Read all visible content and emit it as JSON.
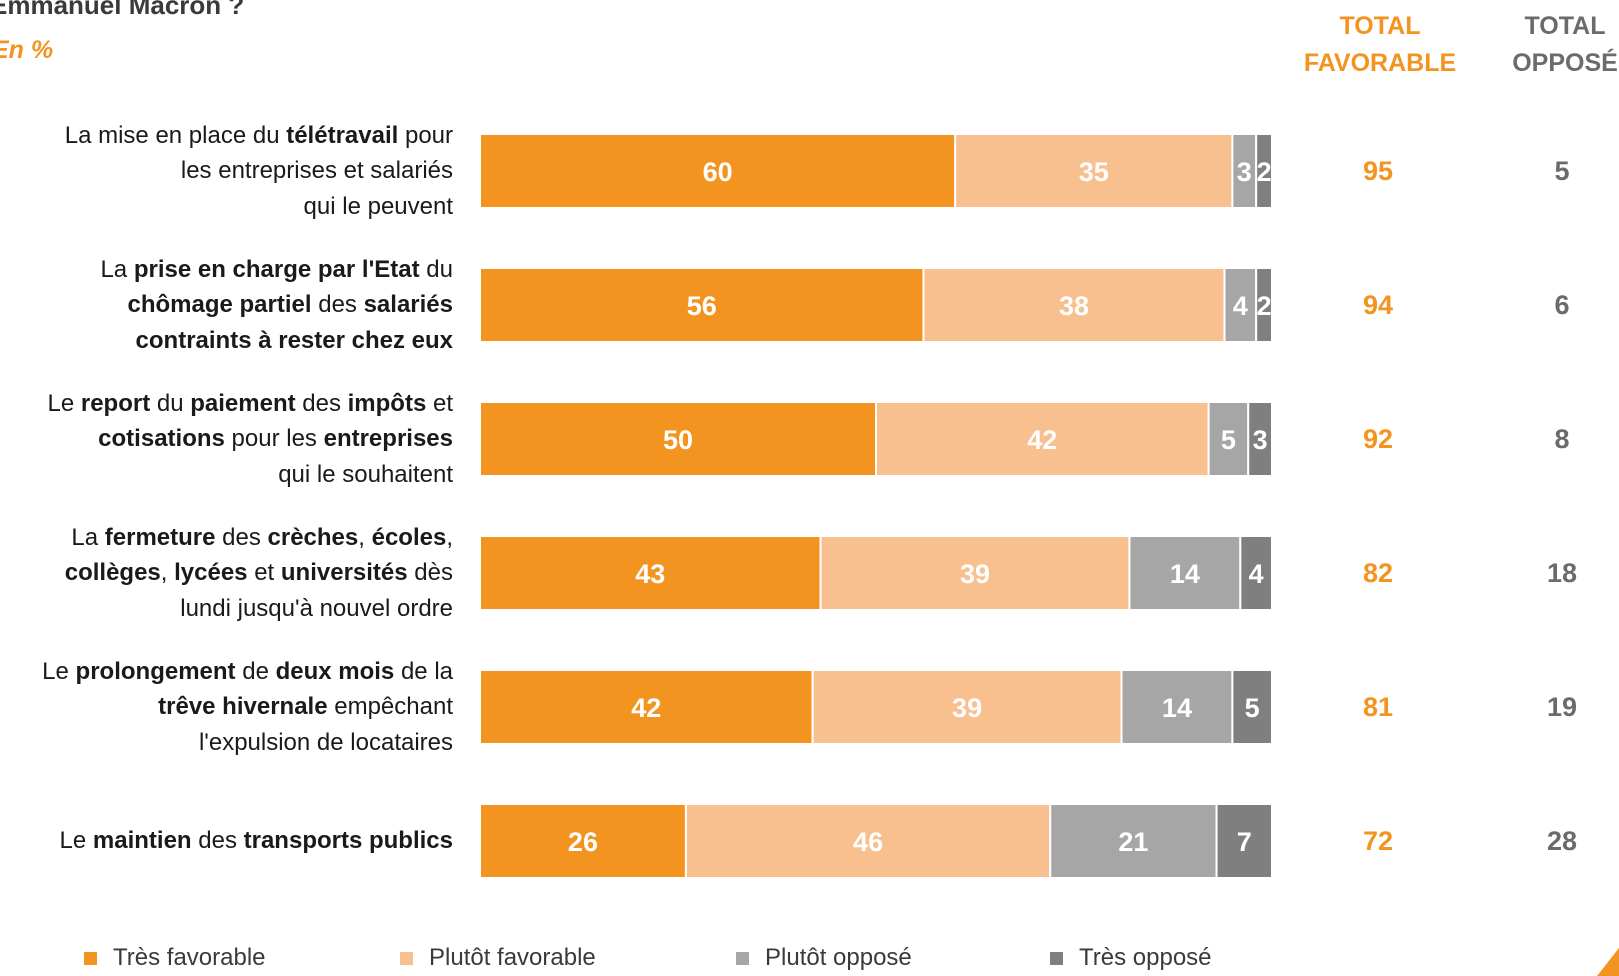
{
  "header": {
    "title": "Emmanuel Macron ?",
    "subtitle": "En %",
    "total_favorable": [
      "TOTAL",
      "FAVORABLE"
    ],
    "total_oppose": [
      "TOTAL",
      "OPPOSÉ"
    ]
  },
  "colors": {
    "tres_favorable": "#f39421",
    "plutot_favorable": "#f8bf8f",
    "plutot_oppose": "#a6a6a6",
    "tres_oppose": "#7f7f7f",
    "accent": "#f39421"
  },
  "chart_data": {
    "type": "bar",
    "orientation": "horizontal",
    "stacked": true,
    "xlim": [
      0,
      100
    ],
    "categories": [
      [
        [
          {
            "t": "La mise en place du ",
            "b": false
          },
          {
            "t": "télétravail",
            "b": true
          },
          {
            "t": " pour",
            "b": false
          }
        ],
        [
          {
            "t": "les entreprises et salariés",
            "b": false
          }
        ],
        [
          {
            "t": "qui le peuvent",
            "b": false
          }
        ]
      ],
      [
        [
          {
            "t": "La ",
            "b": false
          },
          {
            "t": "prise en charge par l'Etat",
            "b": true
          },
          {
            "t": " du",
            "b": false
          }
        ],
        [
          {
            "t": "chômage partiel",
            "b": true
          },
          {
            "t": " des ",
            "b": false
          },
          {
            "t": "salariés",
            "b": true
          }
        ],
        [
          {
            "t": "contraints à rester chez eux",
            "b": true
          }
        ]
      ],
      [
        [
          {
            "t": "Le ",
            "b": false
          },
          {
            "t": "report",
            "b": true
          },
          {
            "t": " du ",
            "b": false
          },
          {
            "t": "paiement",
            "b": true
          },
          {
            "t": " des ",
            "b": false
          },
          {
            "t": "impôts",
            "b": true
          },
          {
            "t": " et",
            "b": false
          }
        ],
        [
          {
            "t": "cotisations",
            "b": true
          },
          {
            "t": " pour les ",
            "b": false
          },
          {
            "t": "entreprises",
            "b": true
          }
        ],
        [
          {
            "t": "qui le souhaitent",
            "b": false
          }
        ]
      ],
      [
        [
          {
            "t": "La ",
            "b": false
          },
          {
            "t": "fermeture",
            "b": true
          },
          {
            "t": " des ",
            "b": false
          },
          {
            "t": "crèches",
            "b": true
          },
          {
            "t": ", ",
            "b": false
          },
          {
            "t": "écoles",
            "b": true
          },
          {
            "t": ",",
            "b": false
          }
        ],
        [
          {
            "t": "collèges",
            "b": true
          },
          {
            "t": ", ",
            "b": false
          },
          {
            "t": "lycées",
            "b": true
          },
          {
            "t": " et ",
            "b": false
          },
          {
            "t": "universités",
            "b": true
          },
          {
            "t": " dès",
            "b": false
          }
        ],
        [
          {
            "t": "lundi jusqu'à nouvel ordre",
            "b": false
          }
        ]
      ],
      [
        [
          {
            "t": "Le ",
            "b": false
          },
          {
            "t": "prolongement",
            "b": true
          },
          {
            "t": " de ",
            "b": false
          },
          {
            "t": "deux mois",
            "b": true
          },
          {
            "t": " de la",
            "b": false
          }
        ],
        [
          {
            "t": "trêve hivernale",
            "b": true
          },
          {
            "t": " empêchant",
            "b": false
          }
        ],
        [
          {
            "t": "l'expulsion de locataires",
            "b": false
          }
        ]
      ],
      [
        [
          {
            "t": "Le ",
            "b": false
          },
          {
            "t": "maintien",
            "b": true
          },
          {
            "t": " des ",
            "b": false
          },
          {
            "t": "transports publics",
            "b": true
          }
        ]
      ]
    ],
    "series": [
      {
        "name": "Très favorable",
        "values": [
          60,
          56,
          50,
          43,
          42,
          26
        ]
      },
      {
        "name": "Plutôt favorable",
        "values": [
          35,
          38,
          42,
          39,
          39,
          46
        ]
      },
      {
        "name": "Plutôt opposé",
        "values": [
          3,
          4,
          5,
          14,
          14,
          21
        ]
      },
      {
        "name": "Très opposé",
        "values": [
          2,
          2,
          3,
          4,
          5,
          7
        ]
      }
    ],
    "total_favorable": [
      95,
      94,
      92,
      82,
      81,
      72
    ],
    "total_oppose": [
      5,
      6,
      8,
      18,
      19,
      28
    ]
  }
}
